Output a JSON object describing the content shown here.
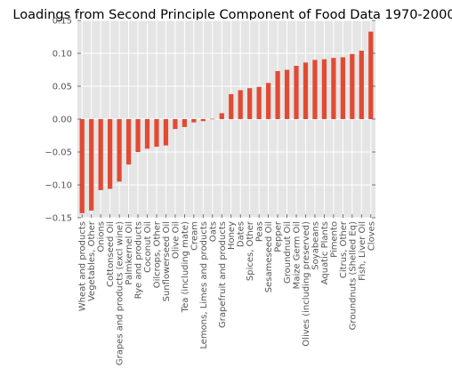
{
  "chart_data": {
    "type": "bar",
    "title": "Loadings from Second Principle Component of Food Data 1970-2000",
    "xlabel": "",
    "ylabel": "",
    "ylim": [
      -0.15,
      0.15
    ],
    "yticks": [
      -0.15,
      -0.1,
      -0.05,
      0.0,
      0.05,
      0.1,
      0.15
    ],
    "ytick_labels": [
      "−0.15",
      "−0.10",
      "−0.05",
      "0.00",
      "0.05",
      "0.10",
      "0.15"
    ],
    "grid": true,
    "legend": "none",
    "bar_color": "#E24A33",
    "background_color": "#E5E5E5",
    "grid_color": "#FFFFFF",
    "categories": [
      "Wheat and products",
      "Vegetables, Other",
      "Onions",
      "Cottonseed Oil",
      "Grapes and products (excl wine)",
      "Palmkernel Oil",
      "Rye and products",
      "Coconut Oil",
      "Oilcrops, Other",
      "Sunflowerseed Oil",
      "Olive Oil",
      "Tea (including mate)",
      "Cream",
      "Lemons, Limes and products",
      "Oats",
      "Grapefruit and products",
      "Honey",
      "Dates",
      "Spices, Other",
      "Peas",
      "Sesameseed Oil",
      "Pepper",
      "Groundnut Oil",
      "Maize Germ Oil",
      "Olives (including preserved)",
      "Soyabeans",
      "Aquatic Plants",
      "Pimento",
      "Citrus, Other",
      "Groundnuts (Shelled Eq)",
      "Fish, Liver Oil",
      "Cloves"
    ],
    "values": [
      -0.143,
      -0.139,
      -0.108,
      -0.106,
      -0.095,
      -0.069,
      -0.05,
      -0.045,
      -0.042,
      -0.04,
      -0.015,
      -0.012,
      -0.005,
      -0.003,
      0.0005,
      0.009,
      0.038,
      0.044,
      0.047,
      0.049,
      0.055,
      0.073,
      0.075,
      0.081,
      0.086,
      0.09,
      0.091,
      0.093,
      0.094,
      0.099,
      0.104,
      0.133
    ]
  }
}
